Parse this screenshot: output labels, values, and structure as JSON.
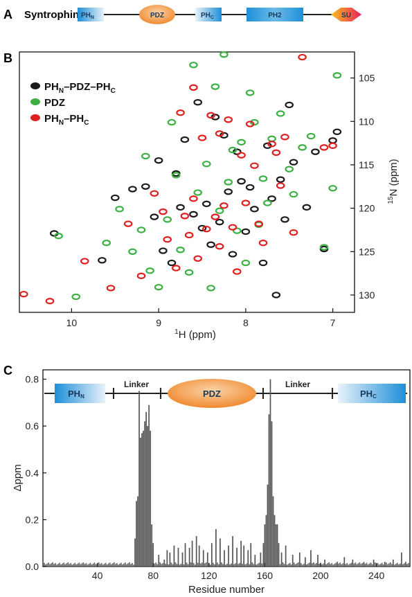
{
  "panel_a": {
    "letter": "A",
    "protein": "Syntrophin",
    "domains": [
      {
        "label": "PH",
        "sub": "N",
        "shape": "box-fade-right"
      },
      {
        "label": "PDZ",
        "shape": "ellipse"
      },
      {
        "label": "PH",
        "sub": "C",
        "shape": "box-fade-left"
      },
      {
        "label": "PH2",
        "shape": "box"
      },
      {
        "label": "SU",
        "shape": "arrow"
      }
    ]
  },
  "panel_b": {
    "letter": "B",
    "legend": [
      {
        "label": "PH",
        "sub1": "N",
        "mid": "–PDZ–PH",
        "sub2": "C",
        "color": "#1a1a1a"
      },
      {
        "label": "PDZ",
        "color": "#3cb043"
      },
      {
        "label": "PH",
        "sub1": "N",
        "mid": "–PH",
        "sub2": "C",
        "color": "#e02020"
      }
    ],
    "x_sup": "1",
    "x_label": "H (ppm)",
    "y_sup": "15",
    "y_label": "N (ppm)",
    "x_ticks": [
      "10",
      "9",
      "8",
      "7"
    ],
    "y_ticks": [
      "105",
      "110",
      "115",
      "120",
      "125",
      "130"
    ]
  },
  "panel_c": {
    "letter": "C",
    "domains": [
      {
        "label": "PH",
        "sub": "N"
      },
      {
        "label": "Linker"
      },
      {
        "label": "PDZ"
      },
      {
        "label": "Linker"
      },
      {
        "label": "PH",
        "sub": "C"
      }
    ],
    "y_label": "Δppm",
    "x_label": "Residue number",
    "x_ticks": [
      "40",
      "80",
      "120",
      "160",
      "200",
      "240"
    ],
    "y_ticks": [
      "0.0",
      "0.2",
      "0.4",
      "0.6",
      "0.8"
    ]
  },
  "chart_data": [
    {
      "type": "scatter",
      "xlabel": "1H (ppm)",
      "ylabel": "15N (ppm)",
      "xlim": [
        10.6,
        6.75
      ],
      "ylim": [
        102,
        132
      ],
      "x_reversed": true,
      "y_reversed": true,
      "series": [
        {
          "name": "PHN–PDZ–PHC",
          "color": "#1a1a1a",
          "points": [
            [
              10.2,
              122.9
            ],
            [
              9.65,
              126.0
            ],
            [
              9.5,
              118.8
            ],
            [
              9.3,
              117.8
            ],
            [
              9.15,
              117.5
            ],
            [
              9.05,
              121.0
            ],
            [
              8.95,
              124.9
            ],
            [
              8.85,
              126.3
            ],
            [
              8.75,
              119.9
            ],
            [
              8.6,
              120.7
            ],
            [
              8.5,
              122.3
            ],
            [
              8.45,
              119.5
            ],
            [
              8.4,
              124.2
            ],
            [
              8.3,
              121.6
            ],
            [
              8.25,
              111.6
            ],
            [
              8.2,
              118.1
            ],
            [
              8.15,
              125.3
            ],
            [
              8.1,
              113.5
            ],
            [
              8.05,
              116.9
            ],
            [
              8.0,
              122.7
            ],
            [
              7.95,
              117.6
            ],
            [
              7.9,
              120.1
            ],
            [
              7.8,
              126.3
            ],
            [
              7.75,
              112.8
            ],
            [
              7.7,
              118.9
            ],
            [
              7.6,
              116.7
            ],
            [
              7.55,
              121.3
            ],
            [
              7.5,
              108.1
            ],
            [
              7.45,
              114.7
            ],
            [
              7.3,
              119.9
            ],
            [
              7.2,
              113.5
            ],
            [
              7.1,
              124.7
            ],
            [
              7.0,
              112.2
            ],
            [
              6.95,
              111.2
            ],
            [
              8.7,
              112.1
            ],
            [
              8.55,
              107.8
            ],
            [
              8.35,
              109.5
            ],
            [
              8.8,
              116.0
            ],
            [
              9.0,
              114.5
            ],
            [
              7.65,
              130.0
            ]
          ]
        },
        {
          "name": "PDZ",
          "color": "#3cb043",
          "points": [
            [
              10.15,
              123.2
            ],
            [
              9.95,
              130.2
            ],
            [
              9.6,
              124.0
            ],
            [
              9.45,
              120.1
            ],
            [
              9.3,
              125.0
            ],
            [
              9.2,
              122.5
            ],
            [
              9.1,
              127.2
            ],
            [
              9.0,
              129.1
            ],
            [
              8.9,
              121.3
            ],
            [
              8.8,
              116.2
            ],
            [
              8.75,
              124.8
            ],
            [
              8.65,
              127.4
            ],
            [
              8.6,
              103.5
            ],
            [
              8.55,
              118.2
            ],
            [
              8.45,
              114.9
            ],
            [
              8.4,
              129.2
            ],
            [
              8.35,
              106.0
            ],
            [
              8.3,
              120.3
            ],
            [
              8.2,
              117.0
            ],
            [
              8.15,
              113.3
            ],
            [
              8.1,
              122.6
            ],
            [
              8.05,
              112.4
            ],
            [
              8.0,
              126.3
            ],
            [
              7.95,
              106.7
            ],
            [
              7.9,
              110.1
            ],
            [
              7.85,
              121.9
            ],
            [
              7.8,
              116.6
            ],
            [
              7.75,
              119.4
            ],
            [
              7.7,
              112.0
            ],
            [
              7.6,
              109.1
            ],
            [
              7.5,
              115.5
            ],
            [
              7.45,
              118.4
            ],
            [
              7.35,
              113.0
            ],
            [
              7.25,
              111.7
            ],
            [
              7.1,
              124.5
            ],
            [
              7.0,
              117.7
            ],
            [
              6.95,
              104.7
            ],
            [
              8.25,
              102.3
            ],
            [
              9.15,
              114.0
            ],
            [
              8.85,
              110.1
            ]
          ]
        },
        {
          "name": "PHN–PHC",
          "color": "#e02020",
          "points": [
            [
              10.55,
              129.9
            ],
            [
              10.25,
              130.7
            ],
            [
              9.85,
              126.1
            ],
            [
              9.55,
              129.2
            ],
            [
              9.35,
              121.8
            ],
            [
              9.2,
              127.8
            ],
            [
              9.05,
              118.3
            ],
            [
              8.95,
              120.4
            ],
            [
              8.9,
              123.6
            ],
            [
              8.8,
              126.9
            ],
            [
              8.7,
              120.9
            ],
            [
              8.65,
              123.1
            ],
            [
              8.6,
              118.9
            ],
            [
              8.55,
              125.8
            ],
            [
              8.5,
              111.9
            ],
            [
              8.45,
              122.4
            ],
            [
              8.4,
              109.3
            ],
            [
              8.35,
              121.0
            ],
            [
              8.3,
              124.4
            ],
            [
              8.25,
              119.7
            ],
            [
              8.2,
              109.8
            ],
            [
              8.15,
              122.2
            ],
            [
              8.1,
              127.3
            ],
            [
              8.05,
              113.9
            ],
            [
              8.0,
              119.4
            ],
            [
              7.95,
              110.3
            ],
            [
              7.9,
              115.1
            ],
            [
              7.85,
              121.8
            ],
            [
              7.8,
              124.0
            ],
            [
              7.7,
              112.6
            ],
            [
              7.65,
              113.6
            ],
            [
              7.6,
              117.4
            ],
            [
              7.55,
              111.8
            ],
            [
              7.45,
              122.8
            ],
            [
              7.35,
              102.6
            ],
            [
              7.1,
              113.0
            ],
            [
              7.0,
              112.8
            ],
            [
              8.75,
              109.0
            ],
            [
              8.6,
              106.1
            ],
            [
              8.3,
              111.4
            ]
          ]
        }
      ]
    },
    {
      "type": "bar",
      "xlabel": "Residue number",
      "ylabel": "Δppm",
      "xlim": [
        1,
        264
      ],
      "ylim": [
        0,
        0.84
      ],
      "series": [
        {
          "name": "",
          "color": "#555555",
          "points": [
            [
              67,
              0.12
            ],
            [
              68,
              0.28
            ],
            [
              69,
              0.3
            ],
            [
              70,
              0.75
            ],
            [
              71,
              0.55
            ],
            [
              72,
              0.57
            ],
            [
              73,
              0.58
            ],
            [
              74,
              0.62
            ],
            [
              75,
              0.66
            ],
            [
              76,
              0.6
            ],
            [
              77,
              0.69
            ],
            [
              78,
              0.58
            ],
            [
              79,
              0.18
            ],
            [
              80,
              0.1
            ],
            [
              84,
              0.05
            ],
            [
              88,
              0.03
            ],
            [
              90,
              0.07
            ],
            [
              92,
              0.06
            ],
            [
              95,
              0.09
            ],
            [
              98,
              0.08
            ],
            [
              101,
              0.06
            ],
            [
              103,
              0.1
            ],
            [
              106,
              0.08
            ],
            [
              108,
              0.11
            ],
            [
              111,
              0.13
            ],
            [
              113,
              0.09
            ],
            [
              116,
              0.07
            ],
            [
              119,
              0.06
            ],
            [
              122,
              0.1
            ],
            [
              125,
              0.16
            ],
            [
              128,
              0.12
            ],
            [
              131,
              0.07
            ],
            [
              134,
              0.09
            ],
            [
              137,
              0.13
            ],
            [
              140,
              0.08
            ],
            [
              143,
              0.11
            ],
            [
              145,
              0.09
            ],
            [
              148,
              0.07
            ],
            [
              150,
              0.1
            ],
            [
              153,
              0.05
            ],
            [
              157,
              0.06
            ],
            [
              159,
              0.1
            ],
            [
              160,
              0.18
            ],
            [
              161,
              0.22
            ],
            [
              162,
              0.35
            ],
            [
              163,
              0.65
            ],
            [
              164,
              0.8
            ],
            [
              165,
              0.62
            ],
            [
              166,
              0.3
            ],
            [
              167,
              0.22
            ],
            [
              168,
              0.18
            ],
            [
              169,
              0.18
            ],
            [
              170,
              0.1
            ],
            [
              172,
              0.06
            ],
            [
              175,
              0.09
            ],
            [
              180,
              0.05
            ],
            [
              185,
              0.06
            ],
            [
              189,
              0.04
            ],
            [
              193,
              0.07
            ],
            [
              198,
              0.05
            ],
            [
              203,
              0.03
            ],
            [
              212,
              0.02
            ],
            [
              217,
              0.04
            ],
            [
              223,
              0.03
            ],
            [
              231,
              0.02
            ],
            [
              238,
              0.03
            ],
            [
              246,
              0.02
            ],
            [
              252,
              0.03
            ],
            [
              258,
              0.06
            ],
            [
              261,
              0.02
            ]
          ]
        }
      ]
    }
  ]
}
